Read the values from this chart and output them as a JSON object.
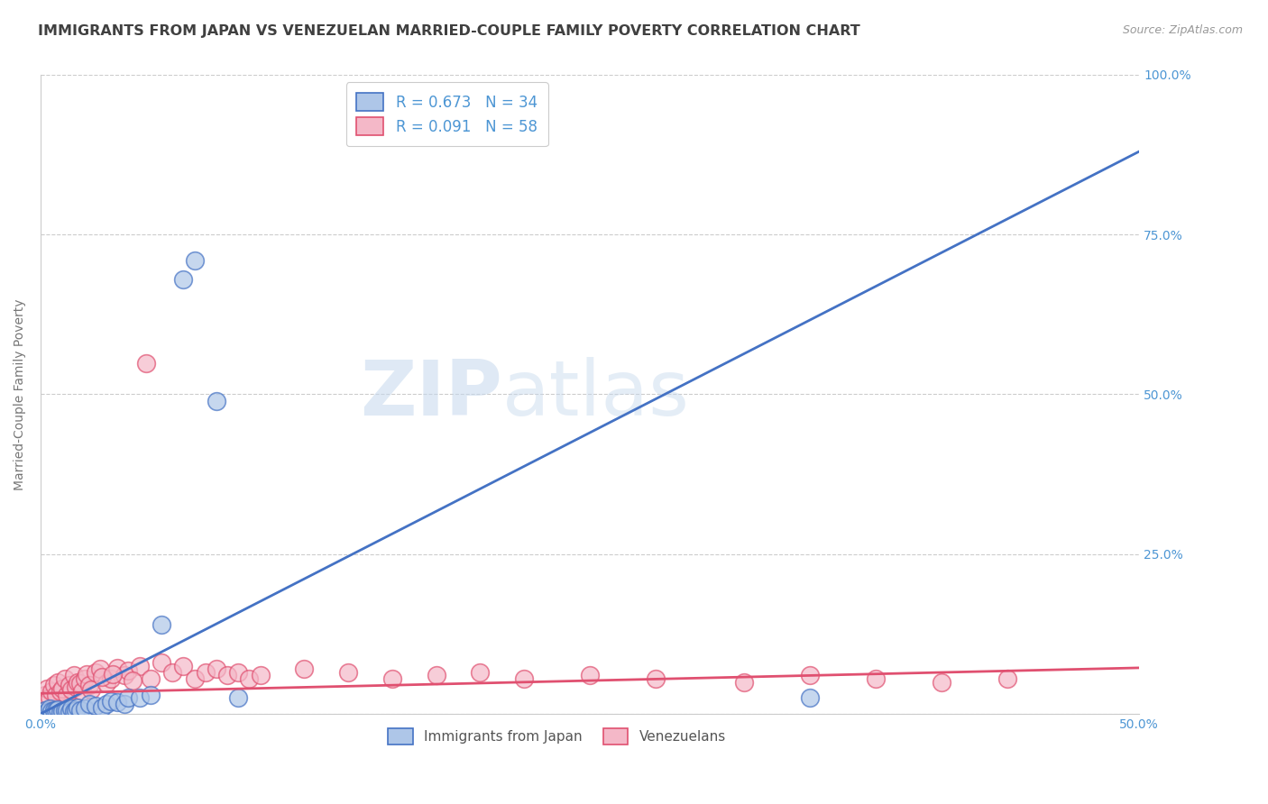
{
  "title": "IMMIGRANTS FROM JAPAN VS VENEZUELAN MARRIED-COUPLE FAMILY POVERTY CORRELATION CHART",
  "source": "Source: ZipAtlas.com",
  "ylabel": "Married-Couple Family Poverty",
  "xlim": [
    0.0,
    0.5
  ],
  "ylim": [
    0.0,
    1.0
  ],
  "xticks": [
    0.0,
    0.1,
    0.2,
    0.3,
    0.4,
    0.5
  ],
  "xticklabels": [
    "0.0%",
    "",
    "",
    "",
    "",
    "50.0%"
  ],
  "yticks": [
    0.0,
    0.25,
    0.5,
    0.75,
    1.0
  ],
  "yticklabels": [
    "",
    "25.0%",
    "50.0%",
    "75.0%",
    "100.0%"
  ],
  "legend_entries": [
    {
      "label": "R = 0.673   N = 34"
    },
    {
      "label": "R = 0.091   N = 58"
    }
  ],
  "japan_scatter_x": [
    0.002,
    0.003,
    0.004,
    0.005,
    0.006,
    0.007,
    0.008,
    0.009,
    0.01,
    0.011,
    0.012,
    0.013,
    0.014,
    0.015,
    0.016,
    0.017,
    0.018,
    0.02,
    0.022,
    0.025,
    0.028,
    0.03,
    0.032,
    0.035,
    0.038,
    0.04,
    0.045,
    0.05,
    0.055,
    0.065,
    0.07,
    0.35,
    0.08,
    0.09
  ],
  "japan_scatter_y": [
    0.005,
    0.003,
    0.008,
    0.004,
    0.006,
    0.005,
    0.007,
    0.003,
    0.004,
    0.006,
    0.005,
    0.003,
    0.008,
    0.004,
    0.006,
    0.01,
    0.005,
    0.008,
    0.015,
    0.012,
    0.01,
    0.015,
    0.02,
    0.018,
    0.015,
    0.025,
    0.025,
    0.03,
    0.14,
    0.68,
    0.71,
    0.025,
    0.49,
    0.025
  ],
  "venezuela_scatter_x": [
    0.002,
    0.003,
    0.004,
    0.005,
    0.006,
    0.007,
    0.008,
    0.009,
    0.01,
    0.011,
    0.012,
    0.013,
    0.014,
    0.015,
    0.016,
    0.017,
    0.018,
    0.019,
    0.02,
    0.021,
    0.022,
    0.023,
    0.025,
    0.027,
    0.03,
    0.032,
    0.035,
    0.038,
    0.04,
    0.045,
    0.05,
    0.055,
    0.06,
    0.065,
    0.07,
    0.075,
    0.08,
    0.085,
    0.09,
    0.095,
    0.1,
    0.12,
    0.14,
    0.16,
    0.18,
    0.2,
    0.22,
    0.25,
    0.28,
    0.32,
    0.35,
    0.38,
    0.41,
    0.44,
    0.028,
    0.033,
    0.042,
    0.048
  ],
  "venezuela_scatter_y": [
    0.03,
    0.04,
    0.025,
    0.035,
    0.045,
    0.03,
    0.05,
    0.035,
    0.04,
    0.055,
    0.03,
    0.045,
    0.038,
    0.06,
    0.042,
    0.05,
    0.048,
    0.035,
    0.055,
    0.062,
    0.045,
    0.038,
    0.065,
    0.07,
    0.048,
    0.055,
    0.072,
    0.06,
    0.068,
    0.075,
    0.055,
    0.08,
    0.065,
    0.075,
    0.055,
    0.065,
    0.07,
    0.06,
    0.065,
    0.055,
    0.06,
    0.07,
    0.065,
    0.055,
    0.06,
    0.065,
    0.055,
    0.06,
    0.055,
    0.05,
    0.06,
    0.055,
    0.05,
    0.055,
    0.058,
    0.062,
    0.052,
    0.548
  ],
  "japan_line_x": [
    0.0,
    0.5
  ],
  "japan_line_y": [
    0.0,
    0.88
  ],
  "venezuela_line_x": [
    0.0,
    0.5
  ],
  "venezuela_line_y": [
    0.032,
    0.072
  ],
  "japan_color": "#4472c4",
  "venezuela_color": "#e05070",
  "japan_scatter_color": "#aec6e8",
  "venezuela_scatter_color": "#f4b8c8",
  "watermark_zip": "ZIP",
  "watermark_atlas": "atlas",
  "background_color": "#ffffff",
  "grid_color": "#cccccc",
  "title_color": "#404040",
  "axis_color": "#4d96d4",
  "right_axis_color": "#4d96d4",
  "title_fontsize": 11.5,
  "label_fontsize": 10,
  "tick_fontsize": 10
}
